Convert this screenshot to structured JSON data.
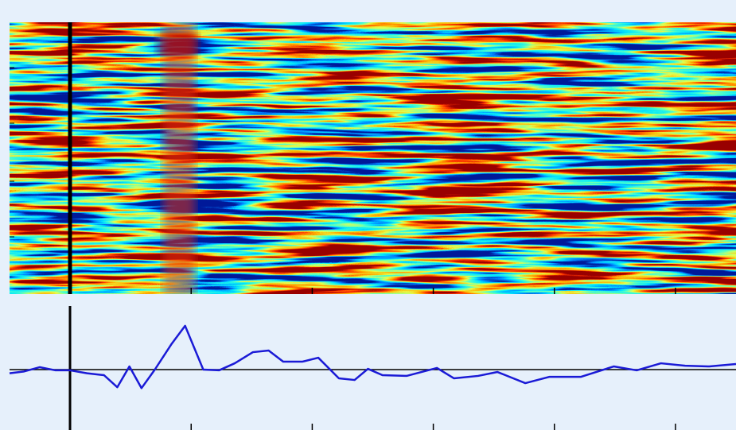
{
  "chart_data": {
    "type": "line",
    "x": [
      -0.5,
      -0.38,
      -0.25,
      -0.12,
      0,
      0.14,
      0.28,
      0.39,
      0.49,
      0.59,
      0.7,
      0.84,
      0.95,
      1.1,
      1.23,
      1.36,
      1.51,
      1.64,
      1.76,
      1.92,
      2.05,
      2.22,
      2.35,
      2.46,
      2.58,
      2.78,
      3.03,
      3.17,
      3.37,
      3.53,
      3.76,
      3.96,
      4.22,
      4.49,
      4.68,
      4.88,
      5.08,
      5.28,
      5.5
    ],
    "values": [
      -0.2,
      -0.1,
      0.13,
      -0.04,
      -0.04,
      -0.2,
      -0.3,
      -0.95,
      0.17,
      -1.0,
      0,
      1.4,
      2.36,
      0,
      -0.04,
      0.34,
      0.94,
      1.03,
      0.43,
      0.43,
      0.64,
      -0.47,
      -0.56,
      0.04,
      -0.3,
      -0.34,
      0.09,
      -0.47,
      -0.34,
      -0.13,
      -0.73,
      -0.39,
      -0.39,
      0.17,
      -0.04,
      0.34,
      0.21,
      0.17,
      0.3
    ],
    "color": "#1a1ad6",
    "xlim": [
      -0.5,
      5.5
    ],
    "ylim": [
      -3,
      3
    ],
    "xticks": [
      1,
      2,
      3,
      4,
      5
    ]
  }
}
